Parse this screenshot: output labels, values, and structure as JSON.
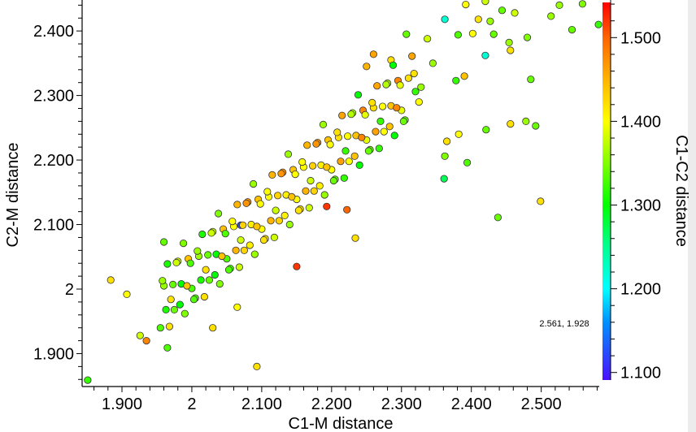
{
  "chart_data": {
    "type": "scatter",
    "xlabel": "C1-M distance",
    "ylabel": "C2-M distance",
    "colorbar_label": "C1-C2 distance",
    "xlim": [
      1.843,
      2.583
    ],
    "ylim": [
      1.849,
      2.448
    ],
    "clim": [
      1.091,
      1.542
    ],
    "x_ticks": [
      {
        "v": 1.9,
        "label": "1.900"
      },
      {
        "v": 2.0,
        "label": "2"
      },
      {
        "v": 2.1,
        "label": "2.100"
      },
      {
        "v": 2.2,
        "label": "2.200"
      },
      {
        "v": 2.3,
        "label": "2.300"
      },
      {
        "v": 2.4,
        "label": "2.400"
      },
      {
        "v": 2.5,
        "label": "2.500"
      }
    ],
    "y_ticks": [
      {
        "v": 1.9,
        "label": "1.900"
      },
      {
        "v": 2.0,
        "label": "2"
      },
      {
        "v": 2.1,
        "label": "2.100"
      },
      {
        "v": 2.2,
        "label": "2.200"
      },
      {
        "v": 2.3,
        "label": "2.300"
      },
      {
        "v": 2.4,
        "label": "2.400"
      }
    ],
    "c_ticks": [
      {
        "v": 1.1,
        "label": "1.100"
      },
      {
        "v": 1.2,
        "label": "1.200"
      },
      {
        "v": 1.3,
        "label": "1.300"
      },
      {
        "v": 1.4,
        "label": "1.400"
      },
      {
        "v": 1.5,
        "label": "1.500"
      }
    ],
    "colormap": [
      [
        1.091,
        "#4a10ff"
      ],
      [
        1.16,
        "#0090ff"
      ],
      [
        1.2,
        "#00ffff"
      ],
      [
        1.25,
        "#00ff90"
      ],
      [
        1.3,
        "#00ff00"
      ],
      [
        1.4,
        "#ffff00"
      ],
      [
        1.45,
        "#ffb400"
      ],
      [
        1.5,
        "#ff6400"
      ],
      [
        1.542,
        "#ff0000"
      ]
    ],
    "cursor_readout": "2.561, 1.928",
    "grid": false,
    "points": [
      [
        1.851,
        1.859,
        1.32
      ],
      [
        2.093,
        1.88,
        1.42
      ],
      [
        1.884,
        2.014,
        1.42
      ],
      [
        1.907,
        1.992,
        1.4
      ],
      [
        1.926,
        1.928,
        1.38
      ],
      [
        1.935,
        1.92,
        1.48
      ],
      [
        1.965,
        1.909,
        1.33
      ],
      [
        1.96,
        2.073,
        1.34
      ],
      [
        2.03,
        1.94,
        1.42
      ],
      [
        2.065,
        1.972,
        1.4
      ],
      [
        2.07,
        2.099,
        1.12
      ],
      [
        2.15,
        2.035,
        1.52
      ],
      [
        2.193,
        2.128,
        1.52
      ],
      [
        2.222,
        2.123,
        1.5
      ],
      [
        2.234,
        2.079,
        1.42
      ],
      [
        2.438,
        2.111,
        1.34
      ],
      [
        2.499,
        2.136,
        1.42
      ],
      [
        2.492,
        2.253,
        1.34
      ],
      [
        2.456,
        2.256,
        1.42
      ],
      [
        2.478,
        2.26,
        1.36
      ],
      [
        2.421,
        2.247,
        1.34
      ],
      [
        2.394,
        2.196,
        1.33
      ],
      [
        2.361,
        2.171,
        1.27
      ],
      [
        2.362,
        2.206,
        1.35
      ],
      [
        2.382,
        2.24,
        1.4
      ],
      [
        2.365,
        2.229,
        1.42
      ],
      [
        2.485,
        2.325,
        1.34
      ],
      [
        2.42,
        2.362,
        1.22
      ],
      [
        2.362,
        2.418,
        1.22
      ],
      [
        2.514,
        2.423,
        1.36
      ],
      [
        2.544,
        2.402,
        1.34
      ],
      [
        2.559,
        2.442,
        1.35
      ],
      [
        2.582,
        2.41,
        1.32
      ],
      [
        2.526,
        2.44,
        1.36
      ],
      [
        2.462,
        2.428,
        1.38
      ],
      [
        2.444,
        2.432,
        1.34
      ],
      [
        2.427,
        2.415,
        1.36
      ],
      [
        2.41,
        2.418,
        1.42
      ],
      [
        2.402,
        2.396,
        1.4
      ],
      [
        2.381,
        2.394,
        1.33
      ],
      [
        2.432,
        2.395,
        1.34
      ],
      [
        2.454,
        2.382,
        1.36
      ],
      [
        2.456,
        2.37,
        1.42
      ],
      [
        2.48,
        2.39,
        1.35
      ],
      [
        2.392,
        2.441,
        1.4
      ],
      [
        2.42,
        2.446,
        1.38
      ],
      [
        2.307,
        2.395,
        1.34
      ],
      [
        2.337,
        2.388,
        1.38
      ],
      [
        2.345,
        2.35,
        1.36
      ],
      [
        2.378,
        2.323,
        1.32
      ],
      [
        2.39,
        2.33,
        1.44
      ],
      [
        2.26,
        2.364,
        1.46
      ],
      [
        2.285,
        2.355,
        1.42
      ],
      [
        2.25,
        2.345,
        1.45
      ],
      [
        1.955,
        1.94,
        1.33
      ],
      [
        1.96,
        2.005,
        1.36
      ],
      [
        1.965,
        2.039,
        1.31
      ],
      [
        1.97,
        1.984,
        1.42
      ],
      [
        1.975,
        1.968,
        1.34
      ],
      [
        1.98,
        2.043,
        1.38
      ],
      [
        1.985,
        2.008,
        1.3
      ],
      [
        1.99,
        1.962,
        1.35
      ],
      [
        1.995,
        2.047,
        1.44
      ],
      [
        2.0,
        2.001,
        1.33
      ],
      [
        2.005,
        1.986,
        1.33
      ],
      [
        2.01,
        2.051,
        1.36
      ],
      [
        2.015,
        2.085,
        1.31
      ],
      [
        2.02,
        2.03,
        1.42
      ],
      [
        2.025,
        2.014,
        1.34
      ],
      [
        2.03,
        2.089,
        1.38
      ],
      [
        2.035,
        2.054,
        1.3
      ],
      [
        2.04,
        2.008,
        1.35
      ],
      [
        2.045,
        2.093,
        1.44
      ],
      [
        2.05,
        2.047,
        1.33
      ],
      [
        2.055,
        2.032,
        1.33
      ],
      [
        2.06,
        2.097,
        1.4
      ],
      [
        2.065,
        2.131,
        1.45
      ],
      [
        2.07,
        2.076,
        1.38
      ],
      [
        2.075,
        2.06,
        1.43
      ],
      [
        2.08,
        2.135,
        1.47
      ],
      [
        2.085,
        2.1,
        1.41
      ],
      [
        2.09,
        2.054,
        1.36
      ],
      [
        2.095,
        2.139,
        1.44
      ],
      [
        2.1,
        2.093,
        1.4
      ],
      [
        2.105,
        2.078,
        1.42
      ],
      [
        2.11,
        2.143,
        1.4
      ],
      [
        2.115,
        2.177,
        1.45
      ],
      [
        2.12,
        2.122,
        1.38
      ],
      [
        2.125,
        2.106,
        1.43
      ],
      [
        2.13,
        2.181,
        1.47
      ],
      [
        2.135,
        2.146,
        1.41
      ],
      [
        2.14,
        2.1,
        1.36
      ],
      [
        2.145,
        2.185,
        1.44
      ],
      [
        2.15,
        2.139,
        1.4
      ],
      [
        2.155,
        2.124,
        1.42
      ],
      [
        2.16,
        2.189,
        1.4
      ],
      [
        2.165,
        2.223,
        1.45
      ],
      [
        2.17,
        2.168,
        1.38
      ],
      [
        2.175,
        2.152,
        1.43
      ],
      [
        2.18,
        2.227,
        1.47
      ],
      [
        2.185,
        2.192,
        1.41
      ],
      [
        2.19,
        2.146,
        1.36
      ],
      [
        2.195,
        2.231,
        1.44
      ],
      [
        2.2,
        2.185,
        1.4
      ],
      [
        2.205,
        2.17,
        1.34
      ],
      [
        2.21,
        2.235,
        1.42
      ],
      [
        2.215,
        2.269,
        1.46
      ],
      [
        2.22,
        2.214,
        1.32
      ],
      [
        2.225,
        2.198,
        1.4
      ],
      [
        2.23,
        2.273,
        1.37
      ],
      [
        2.235,
        2.238,
        1.44
      ],
      [
        2.24,
        2.192,
        1.3
      ],
      [
        2.245,
        2.277,
        1.48
      ],
      [
        2.25,
        2.231,
        1.39
      ],
      [
        2.255,
        2.216,
        1.34
      ],
      [
        2.26,
        2.281,
        1.42
      ],
      [
        2.265,
        2.315,
        1.46
      ],
      [
        2.27,
        2.26,
        1.32
      ],
      [
        2.275,
        2.244,
        1.4
      ],
      [
        2.28,
        2.319,
        1.37
      ],
      [
        2.285,
        2.284,
        1.44
      ],
      [
        2.29,
        2.238,
        1.3
      ],
      [
        2.295,
        2.323,
        1.48
      ],
      [
        2.3,
        2.277,
        1.39
      ],
      [
        2.305,
        2.262,
        1.34
      ],
      [
        2.31,
        2.327,
        1.42
      ],
      [
        2.315,
        2.361,
        1.46
      ],
      [
        2.32,
        2.306,
        1.32
      ],
      [
        2.325,
        2.29,
        1.4
      ],
      [
        1.958,
        2.013,
        1.36
      ],
      [
        1.963,
        1.968,
        1.31
      ],
      [
        1.968,
        1.942,
        1.42
      ],
      [
        1.973,
        2.007,
        1.34
      ],
      [
        1.978,
        2.041,
        1.38
      ],
      [
        1.983,
        1.976,
        1.3
      ],
      [
        1.988,
        2.071,
        1.35
      ],
      [
        1.993,
        2.005,
        1.44
      ],
      [
        1.998,
        2.04,
        1.33
      ],
      [
        2.003,
        1.984,
        1.33
      ],
      [
        2.008,
        2.059,
        1.36
      ],
      [
        2.013,
        2.014,
        1.31
      ],
      [
        2.018,
        1.988,
        1.42
      ],
      [
        2.023,
        2.053,
        1.34
      ],
      [
        2.028,
        2.087,
        1.38
      ],
      [
        2.033,
        2.022,
        1.3
      ],
      [
        2.038,
        2.117,
        1.35
      ],
      [
        2.043,
        2.051,
        1.44
      ],
      [
        2.048,
        2.086,
        1.33
      ],
      [
        2.053,
        2.03,
        1.33
      ],
      [
        2.058,
        2.105,
        1.4
      ],
      [
        2.063,
        2.06,
        1.45
      ],
      [
        2.068,
        2.034,
        1.38
      ],
      [
        2.073,
        2.099,
        1.43
      ],
      [
        2.078,
        2.133,
        1.47
      ],
      [
        2.083,
        2.068,
        1.41
      ],
      [
        2.088,
        2.163,
        1.36
      ],
      [
        2.093,
        2.097,
        1.44
      ],
      [
        2.098,
        2.132,
        1.4
      ],
      [
        2.103,
        2.076,
        1.42
      ],
      [
        2.108,
        2.151,
        1.4
      ],
      [
        2.113,
        2.106,
        1.45
      ],
      [
        2.118,
        2.08,
        1.38
      ],
      [
        2.123,
        2.145,
        1.43
      ],
      [
        2.128,
        2.179,
        1.47
      ],
      [
        2.133,
        2.114,
        1.41
      ],
      [
        2.138,
        2.209,
        1.36
      ],
      [
        2.143,
        2.143,
        1.44
      ],
      [
        2.148,
        2.178,
        1.4
      ],
      [
        2.153,
        2.122,
        1.42
      ],
      [
        2.158,
        2.197,
        1.4
      ],
      [
        2.163,
        2.152,
        1.45
      ],
      [
        2.168,
        2.126,
        1.38
      ],
      [
        2.173,
        2.191,
        1.43
      ],
      [
        2.178,
        2.225,
        1.47
      ],
      [
        2.183,
        2.16,
        1.41
      ],
      [
        2.188,
        2.255,
        1.36
      ],
      [
        2.193,
        2.189,
        1.44
      ],
      [
        2.198,
        2.224,
        1.4
      ],
      [
        2.203,
        2.168,
        1.34
      ],
      [
        2.208,
        2.243,
        1.42
      ],
      [
        2.213,
        2.198,
        1.46
      ],
      [
        2.218,
        2.172,
        1.32
      ],
      [
        2.223,
        2.237,
        1.4
      ],
      [
        2.228,
        2.271,
        1.37
      ],
      [
        2.233,
        2.206,
        1.44
      ],
      [
        2.238,
        2.301,
        1.3
      ],
      [
        2.243,
        2.235,
        1.48
      ],
      [
        2.248,
        2.27,
        1.39
      ],
      [
        2.253,
        2.214,
        1.34
      ],
      [
        2.258,
        2.289,
        1.42
      ],
      [
        2.263,
        2.244,
        1.46
      ],
      [
        2.268,
        2.218,
        1.32
      ],
      [
        2.273,
        2.283,
        1.4
      ],
      [
        2.278,
        2.317,
        1.37
      ],
      [
        2.283,
        2.252,
        1.44
      ],
      [
        2.288,
        2.347,
        1.3
      ],
      [
        2.293,
        2.281,
        1.48
      ],
      [
        2.298,
        2.316,
        1.39
      ],
      [
        2.303,
        2.26,
        1.34
      ],
      [
        2.318,
        2.334,
        1.42
      ],
      [
        2.328,
        2.313,
        1.36
      ]
    ]
  }
}
